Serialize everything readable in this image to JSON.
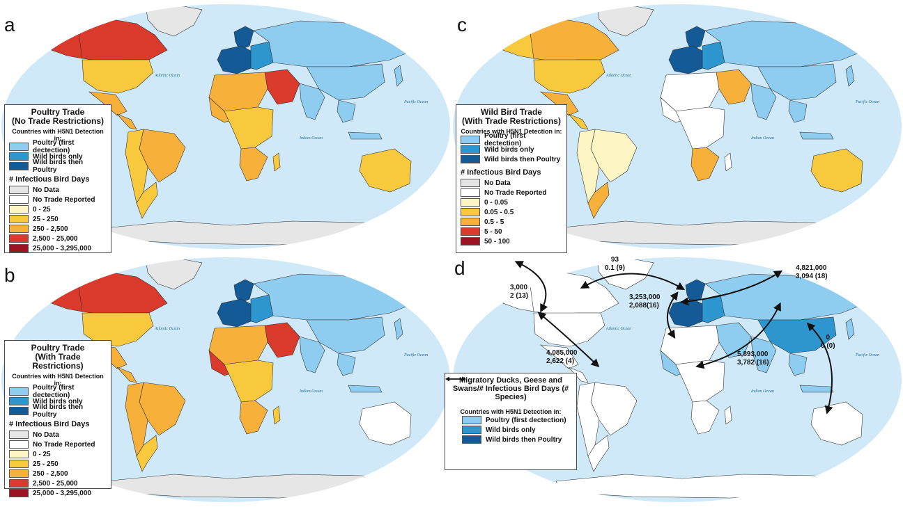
{
  "colors": {
    "ocean": "#cfe9f8",
    "land_default": "#ffffff",
    "no_data": "#e6e6e6",
    "poultry_first": "#8fcdf0",
    "wild_birds_only": "#2d96cf",
    "wild_then_poultry": "#145a96",
    "bin1": "#fdf6c4",
    "bin2": "#f9c93d",
    "bin3": "#f7b03a",
    "bin4": "#d93a2b",
    "bin5": "#9c1423"
  },
  "panels": {
    "a": {
      "letter": "a",
      "legend_title": "Poultry Trade\n(No Trade Restrictions)",
      "detection_header": "Countries with H5N1 Detection in:",
      "detection_items": [
        "Poultry (first dectection)",
        "Wild birds only",
        "Wild birds then Poultry"
      ],
      "days_header": "# Infectious Bird Days",
      "days_items": [
        "No Data",
        "No Trade Reported",
        "0 - 25",
        "25 - 250",
        "250 - 2,500",
        "2,500 - 25,000",
        "25,000 - 3,295,000"
      ],
      "ocean_labels": [
        "Atlantic Ocean",
        "Indian Ocean",
        "Pacific Ocean"
      ]
    },
    "b": {
      "letter": "b",
      "legend_title": "Poultry Trade\n(With Trade Restrictions)",
      "detection_header": "Countries with H5N1 Detection in:",
      "detection_items": [
        "Poultry (first dectection)",
        "Wild birds only",
        "Wild birds then Poultry"
      ],
      "days_header": "# Infectious Bird Days",
      "days_items": [
        "No Data",
        "No Trade Reported",
        "0 - 25",
        "25 - 250",
        "250 - 2,500",
        "2,500 - 25,000",
        "25,000 - 3,295,000"
      ],
      "ocean_labels": [
        "Atlantic Ocean",
        "Indian Ocean",
        "Pacific Ocean"
      ]
    },
    "c": {
      "letter": "c",
      "legend_title": "Wild Bird Trade\n(With Trade Restrictions)",
      "detection_header": "Countries with H5N1 Detection in:",
      "detection_items": [
        "Poultry (first dectection)",
        "Wild birds only",
        "Wild birds then Poultry"
      ],
      "days_header": "# Infectious Bird Days",
      "days_items": [
        "No Data",
        "No Trade Reported",
        "0 - 0.05",
        "0.05 - 0.5",
        "0.5 - 5",
        "5 - 50",
        "50 - 100"
      ],
      "ocean_labels": [
        "Atlantic Ocean",
        "Indian Ocean",
        "Pacific Ocean"
      ]
    },
    "d": {
      "letter": "d",
      "legend_title": "Migratory Ducks, Geese and Swans/# Infectious Bird Days (# Species)",
      "detection_header": "Countries with H5N1 Detection in:",
      "detection_items": [
        "Poultry (first dectection)",
        "Wild birds only",
        "Wild birds then Poultry"
      ],
      "ocean_labels": [
        "Atlantic Ocean",
        "Indian Ocean",
        "Pacific Ocean"
      ],
      "flyway_annotations": [
        {
          "line1": "93",
          "line2": "0.1 (9)"
        },
        {
          "line1": "3,000",
          "line2": "2 (13)"
        },
        {
          "line1": "4,821,000",
          "line2": "3,094 (18)"
        },
        {
          "line1": "3,253,000",
          "line2": "2,088(16)"
        },
        {
          "line1": "4,085,000",
          "line2": "2,622 (4)"
        },
        {
          "line1": "5,893,000",
          "line2": "3,782 (16)"
        },
        {
          "line1": "0",
          "line2": "0 (0)"
        }
      ]
    }
  }
}
